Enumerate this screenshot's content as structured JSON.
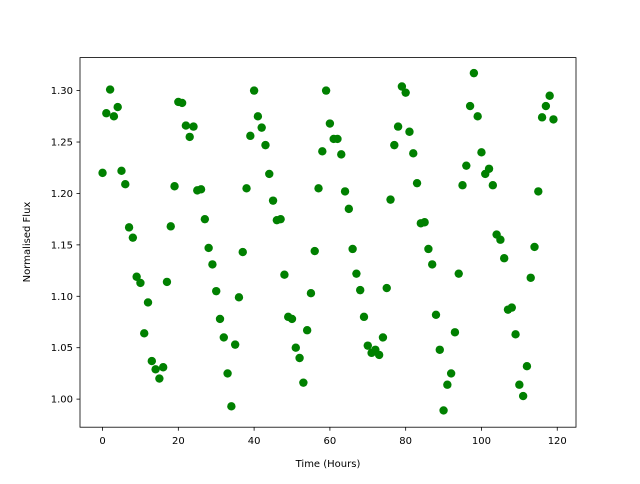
{
  "chart_data": {
    "type": "scatter",
    "xlabel": "Time (Hours)",
    "ylabel": "Normalised Flux",
    "color": "#008000",
    "x": [
      0,
      1,
      2,
      3,
      4,
      5,
      6,
      7,
      8,
      9,
      10,
      11,
      12,
      13,
      14,
      15,
      16,
      17,
      18,
      19,
      20,
      21,
      22,
      23,
      24,
      25,
      26,
      27,
      28,
      29,
      30,
      31,
      32,
      33,
      34,
      35,
      36,
      37,
      38,
      39,
      40,
      41,
      42,
      43,
      44,
      45,
      46,
      47,
      48,
      49,
      50,
      51,
      52,
      53,
      54,
      55,
      56,
      57,
      58,
      59,
      60,
      61,
      62,
      63,
      64,
      65,
      66,
      67,
      68,
      69,
      70,
      71,
      72,
      73,
      74,
      75,
      76,
      77,
      78,
      79,
      80,
      81,
      82,
      83,
      84,
      85,
      86,
      87,
      88,
      89,
      90,
      91,
      92,
      93,
      94,
      95,
      96,
      97,
      98,
      99,
      100,
      101,
      102,
      103,
      104,
      105,
      106,
      107,
      108,
      109,
      110,
      111,
      112,
      113,
      114,
      115,
      116,
      117,
      118,
      119
    ],
    "values": [
      1.22,
      1.278,
      1.301,
      1.275,
      1.284,
      1.222,
      1.209,
      1.167,
      1.157,
      1.119,
      1.113,
      1.064,
      1.094,
      1.037,
      1.029,
      1.02,
      1.031,
      1.114,
      1.168,
      1.207,
      1.289,
      1.288,
      1.266,
      1.255,
      1.265,
      1.203,
      1.204,
      1.175,
      1.147,
      1.131,
      1.105,
      1.078,
      1.06,
      1.025,
      0.993,
      1.053,
      1.099,
      1.143,
      1.205,
      1.256,
      1.3,
      1.275,
      1.264,
      1.247,
      1.219,
      1.193,
      1.174,
      1.175,
      1.121,
      1.08,
      1.078,
      1.05,
      1.04,
      1.016,
      1.067,
      1.103,
      1.144,
      1.205,
      1.241,
      1.3,
      1.268,
      1.253,
      1.253,
      1.238,
      1.202,
      1.185,
      1.146,
      1.122,
      1.106,
      1.08,
      1.052,
      1.045,
      1.048,
      1.043,
      1.06,
      1.108,
      1.194,
      1.247,
      1.265,
      1.304,
      1.298,
      1.26,
      1.239,
      1.21,
      1.171,
      1.172,
      1.146,
      1.131,
      1.082,
      1.048,
      0.989,
      1.014,
      1.025,
      1.065,
      1.122,
      1.208,
      1.227,
      1.285,
      1.317,
      1.275,
      1.24,
      1.219,
      1.224,
      1.208,
      1.16,
      1.155,
      1.137,
      1.087,
      1.089,
      1.063,
      1.014,
      1.003,
      1.032,
      1.118,
      1.148,
      1.202,
      1.274,
      1.285,
      1.295,
      1.272
    ],
    "xlim": [
      -5.95,
      124.95
    ],
    "ylim": [
      0.9727,
      1.3321
    ],
    "xticks": [
      0,
      20,
      40,
      60,
      80,
      100,
      120
    ],
    "yticks": [
      {
        "value": 1.0,
        "label": "1.00"
      },
      {
        "value": 1.05,
        "label": "1.05"
      },
      {
        "value": 1.1,
        "label": "1.10"
      },
      {
        "value": 1.15,
        "label": "1.15"
      },
      {
        "value": 1.2,
        "label": "1.20"
      },
      {
        "value": 1.25,
        "label": "1.25"
      },
      {
        "value": 1.3,
        "label": "1.30"
      }
    ]
  }
}
